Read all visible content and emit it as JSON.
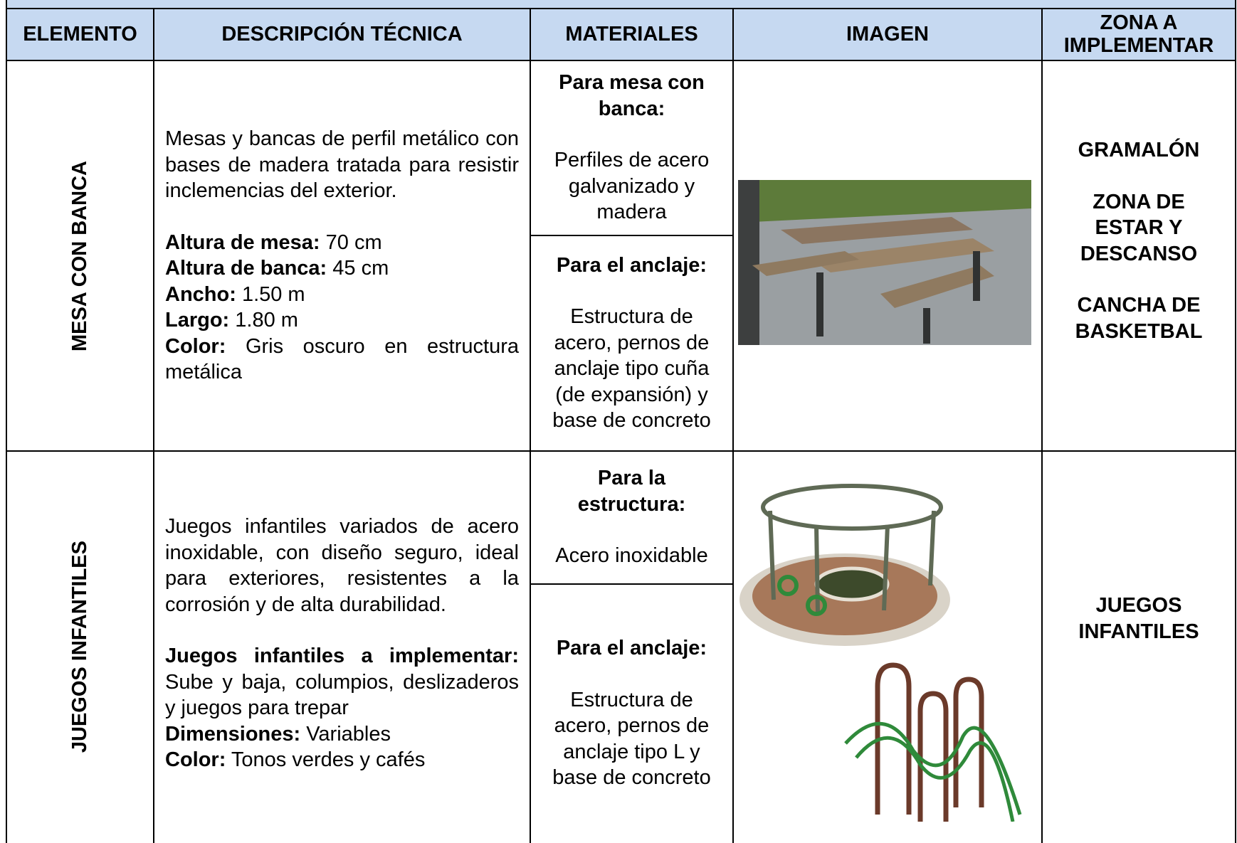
{
  "header": {
    "columns": [
      "ELEMENTO",
      "DESCRIPCIÓN TÉCNICA",
      "MATERIALES",
      "IMAGEN",
      "ZONA A IMPLEMENTAR"
    ]
  },
  "rows": [
    {
      "element": "MESA CON BANCA",
      "description": {
        "intro": "Mesas y bancas de perfil metálico con bases de madera tratada para resistir inclemencias del exterior.",
        "specs": [
          {
            "label": "Altura de mesa:",
            "value": "70 cm"
          },
          {
            "label": "Altura de banca:",
            "value": "45 cm"
          },
          {
            "label": "Ancho:",
            "value": "1.50 m"
          },
          {
            "label": "Largo:",
            "value": "1.80 m"
          },
          {
            "label": "Color:",
            "value": "Gris oscuro en estructura metálica"
          }
        ]
      },
      "materials": [
        {
          "title": "Para mesa con banca:",
          "text": "Perfiles de acero galvanizado y madera"
        },
        {
          "title": "Para el anclaje:",
          "text": "Estructura de acero, pernos de anclaje tipo cuña (de expansión) y base de concreto"
        }
      ],
      "zones": [
        "GRAMALÓN",
        "ZONA DE ESTAR Y DESCANSO",
        "CANCHA DE BASKETBAL"
      ]
    },
    {
      "element": "JUEGOS INFANTILES",
      "description": {
        "intro": "Juegos infantiles variados de acero inoxidable, con diseño seguro, ideal para exteriores, resistentes a la corrosión y de alta durabilidad.",
        "specs": [
          {
            "label": "Juegos infantiles a implementar:",
            "value": "Sube y baja, columpios, deslizaderos y juegos para trepar"
          },
          {
            "label": "Dimensiones:",
            "value": "Variables"
          },
          {
            "label": "Color:",
            "value": "Tonos verdes y cafés"
          }
        ]
      },
      "materials": [
        {
          "title": "Para la estructura:",
          "text": "Acero inoxidable"
        },
        {
          "title": "Para el anclaje:",
          "text": "Estructura de acero, pernos de anclaje tipo L y base de concreto"
        }
      ],
      "zones": [
        "JUEGOS INFANTILES"
      ]
    }
  ]
}
